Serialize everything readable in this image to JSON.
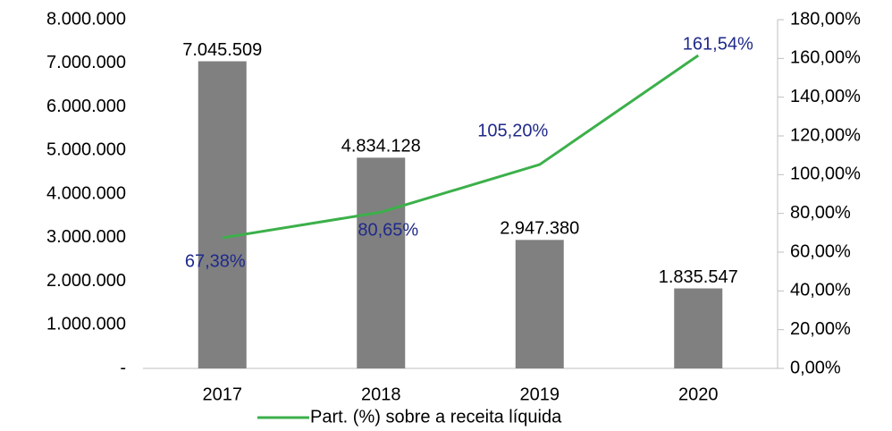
{
  "chart_data": {
    "type": "bar",
    "categories": [
      "2017",
      "2018",
      "2019",
      "2020"
    ],
    "series": [
      {
        "type": "bar",
        "color": "#808080",
        "values": [
          7045509,
          4834128,
          2947380,
          1835547
        ],
        "value_labels": [
          "7.045.509",
          "4.834.128",
          "2.947.380",
          "1.835.547"
        ]
      },
      {
        "type": "line",
        "name": "Part. (%) sobre a receita líquida",
        "color": "#3cb04a",
        "axis": "y2",
        "label_color": "#1f2a8a",
        "values": [
          67.38,
          80.65,
          105.2,
          161.54
        ],
        "value_labels": [
          "67,38%",
          "80,65%",
          "105,20%",
          "161,54%"
        ]
      }
    ],
    "ylim": [
      0,
      8000000
    ],
    "yticks": [
      {
        "value": 0,
        "label": "-"
      },
      {
        "value": 1000000,
        "label": "1.000.000"
      },
      {
        "value": 2000000,
        "label": "2.000.000"
      },
      {
        "value": 3000000,
        "label": "3.000.000"
      },
      {
        "value": 4000000,
        "label": "4.000.000"
      },
      {
        "value": 5000000,
        "label": "5.000.000"
      },
      {
        "value": 6000000,
        "label": "6.000.000"
      },
      {
        "value": 7000000,
        "label": "7.000.000"
      },
      {
        "value": 8000000,
        "label": "8.000.000"
      }
    ],
    "y2lim": [
      0,
      180
    ],
    "y2ticks": [
      {
        "value": 0,
        "label": "0,00%"
      },
      {
        "value": 20,
        "label": "20,00%"
      },
      {
        "value": 40,
        "label": "40,00%"
      },
      {
        "value": 60,
        "label": "60,00%"
      },
      {
        "value": 80,
        "label": "80,00%"
      },
      {
        "value": 100,
        "label": "100,00%"
      },
      {
        "value": 120,
        "label": "120,00%"
      },
      {
        "value": 140,
        "label": "140,00%"
      },
      {
        "value": 160,
        "label": "160,00%"
      },
      {
        "value": 180,
        "label": "180,00%"
      }
    ],
    "legend": "bottom"
  }
}
